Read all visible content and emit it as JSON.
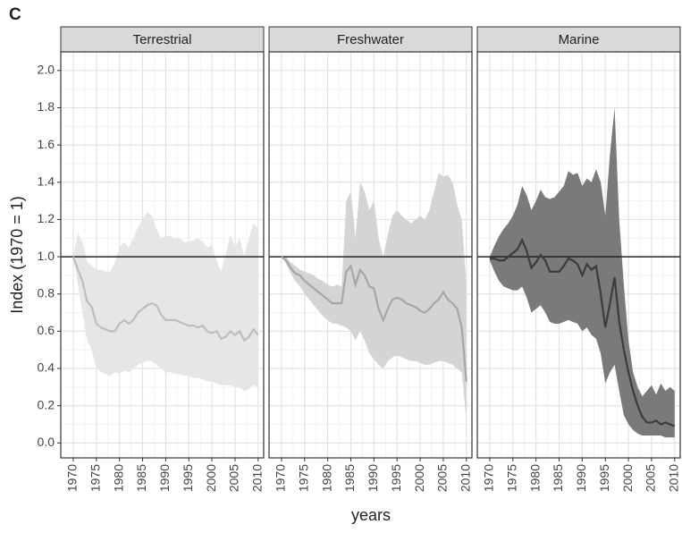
{
  "panel_label": "C",
  "y_label": "Index (1970 = 1)",
  "x_label": "years",
  "chart_data": [
    {
      "type": "line",
      "title": "Terrestrial",
      "band_color": "#e6e6e6",
      "color": "#bdbdbd",
      "x": [
        1970,
        1971,
        1972,
        1973,
        1974,
        1975,
        1976,
        1977,
        1978,
        1979,
        1980,
        1981,
        1982,
        1983,
        1984,
        1985,
        1986,
        1987,
        1988,
        1989,
        1990,
        1991,
        1992,
        1993,
        1994,
        1995,
        1996,
        1997,
        1998,
        1999,
        2000,
        2001,
        2002,
        2003,
        2004,
        2005,
        2006,
        2007,
        2008,
        2009,
        2010
      ],
      "values": [
        1.0,
        0.93,
        0.87,
        0.76,
        0.73,
        0.64,
        0.62,
        0.61,
        0.6,
        0.6,
        0.64,
        0.66,
        0.64,
        0.66,
        0.7,
        0.72,
        0.74,
        0.75,
        0.74,
        0.69,
        0.66,
        0.66,
        0.66,
        0.65,
        0.64,
        0.63,
        0.63,
        0.62,
        0.63,
        0.6,
        0.59,
        0.6,
        0.56,
        0.57,
        0.6,
        0.58,
        0.6,
        0.55,
        0.57,
        0.61,
        0.58
      ],
      "upper": [
        1.0,
        1.13,
        1.08,
        0.97,
        0.95,
        0.93,
        0.93,
        0.92,
        0.92,
        0.97,
        1.05,
        1.08,
        1.05,
        1.1,
        1.16,
        1.2,
        1.24,
        1.22,
        1.15,
        1.1,
        1.11,
        1.11,
        1.1,
        1.1,
        1.08,
        1.08,
        1.09,
        1.1,
        1.08,
        1.05,
        1.06,
        0.98,
        0.92,
        1.02,
        1.12,
        1.05,
        1.1,
        1.0,
        1.1,
        1.18,
        1.15
      ],
      "lower": [
        1.0,
        0.85,
        0.7,
        0.55,
        0.5,
        0.4,
        0.38,
        0.37,
        0.36,
        0.38,
        0.37,
        0.39,
        0.38,
        0.4,
        0.42,
        0.43,
        0.44,
        0.44,
        0.42,
        0.4,
        0.38,
        0.38,
        0.37,
        0.37,
        0.36,
        0.36,
        0.35,
        0.35,
        0.34,
        0.33,
        0.33,
        0.32,
        0.31,
        0.31,
        0.31,
        0.3,
        0.3,
        0.28,
        0.29,
        0.31,
        0.3
      ],
      "xlim": [
        1967.3,
        2011.2
      ],
      "xticks": [
        1970,
        1975,
        1980,
        1985,
        1990,
        1995,
        2000,
        2005,
        2010
      ],
      "ylim": [
        -0.08,
        2.1
      ],
      "yticks": [
        {
          "value": 0,
          "label": "0.0"
        },
        {
          "value": 0.2,
          "label": "0.2"
        },
        {
          "value": 0.4,
          "label": "0.4"
        },
        {
          "value": 0.6,
          "label": "0.6"
        },
        {
          "value": 0.8,
          "label": "0.8"
        },
        {
          "value": 1,
          "label": "1.0"
        },
        {
          "value": 1.2,
          "label": "1.2"
        },
        {
          "value": 1.4,
          "label": "1.4"
        },
        {
          "value": 1.6,
          "label": "1.6"
        },
        {
          "value": 1.8,
          "label": "1.8"
        },
        {
          "value": 2,
          "label": "2.0"
        }
      ],
      "reference_line": 1,
      "grid": true
    },
    {
      "type": "line",
      "title": "Freshwater",
      "band_color": "#d4d4d4",
      "color": "#a6a6a6",
      "x": [
        1970,
        1971,
        1972,
        1973,
        1974,
        1975,
        1976,
        1977,
        1978,
        1979,
        1980,
        1981,
        1982,
        1983,
        1984,
        1985,
        1986,
        1987,
        1988,
        1989,
        1990,
        1991,
        1992,
        1993,
        1994,
        1995,
        1996,
        1997,
        1998,
        1999,
        2000,
        2001,
        2002,
        2003,
        2004,
        2005,
        2006,
        2007,
        2008,
        2009,
        2010
      ],
      "values": [
        1.0,
        0.98,
        0.94,
        0.91,
        0.9,
        0.87,
        0.85,
        0.83,
        0.81,
        0.79,
        0.77,
        0.75,
        0.75,
        0.75,
        0.92,
        0.95,
        0.85,
        0.93,
        0.9,
        0.84,
        0.83,
        0.72,
        0.66,
        0.72,
        0.77,
        0.78,
        0.77,
        0.75,
        0.74,
        0.73,
        0.71,
        0.7,
        0.72,
        0.75,
        0.77,
        0.81,
        0.77,
        0.75,
        0.72,
        0.62,
        0.33
      ],
      "upper": [
        1.0,
        1.0,
        0.97,
        0.95,
        0.93,
        0.92,
        0.91,
        0.9,
        0.88,
        0.87,
        0.85,
        0.84,
        0.85,
        0.84,
        1.3,
        1.35,
        1.1,
        1.4,
        1.35,
        1.25,
        1.3,
        1.1,
        1.0,
        1.12,
        1.22,
        1.25,
        1.22,
        1.2,
        1.18,
        1.2,
        1.22,
        1.2,
        1.25,
        1.35,
        1.45,
        1.43,
        1.44,
        1.4,
        1.28,
        1.2,
        0.85
      ],
      "lower": [
        1.0,
        0.96,
        0.91,
        0.87,
        0.84,
        0.8,
        0.77,
        0.74,
        0.71,
        0.68,
        0.66,
        0.64,
        0.64,
        0.63,
        0.62,
        0.6,
        0.55,
        0.6,
        0.55,
        0.48,
        0.45,
        0.42,
        0.4,
        0.44,
        0.46,
        0.47,
        0.46,
        0.45,
        0.44,
        0.44,
        0.43,
        0.42,
        0.42,
        0.43,
        0.44,
        0.44,
        0.43,
        0.42,
        0.4,
        0.38,
        0.12
      ],
      "xlim": [
        1967.3,
        2011.2
      ],
      "xticks": [
        1970,
        1975,
        1980,
        1985,
        1990,
        1995,
        2000,
        2005,
        2010
      ],
      "ylim": [
        -0.08,
        2.1
      ],
      "yticks": [
        0,
        0.2,
        0.4,
        0.6,
        0.8,
        1,
        1.2,
        1.4,
        1.6,
        1.8,
        2
      ],
      "reference_line": 1,
      "grid": true
    },
    {
      "type": "line",
      "title": "Marine",
      "band_color": "#7a7a7a",
      "color": "#3c3c3c",
      "x": [
        1970,
        1971,
        1972,
        1973,
        1974,
        1975,
        1976,
        1977,
        1978,
        1979,
        1980,
        1981,
        1982,
        1983,
        1984,
        1985,
        1986,
        1987,
        1988,
        1989,
        1990,
        1991,
        1992,
        1993,
        1994,
        1995,
        1996,
        1997,
        1998,
        1999,
        2000,
        2001,
        2002,
        2003,
        2004,
        2005,
        2006,
        2007,
        2008,
        2009,
        2010
      ],
      "values": [
        0.99,
        0.99,
        0.98,
        0.98,
        1.0,
        1.02,
        1.04,
        1.09,
        1.03,
        0.94,
        0.97,
        1.01,
        0.98,
        0.92,
        0.92,
        0.92,
        0.95,
        0.99,
        0.98,
        0.96,
        0.9,
        0.96,
        0.93,
        0.95,
        0.8,
        0.62,
        0.75,
        0.89,
        0.65,
        0.5,
        0.38,
        0.28,
        0.2,
        0.14,
        0.11,
        0.11,
        0.12,
        0.1,
        0.11,
        0.1,
        0.09
      ],
      "upper": [
        1.0,
        1.06,
        1.11,
        1.15,
        1.18,
        1.22,
        1.28,
        1.38,
        1.33,
        1.25,
        1.3,
        1.36,
        1.32,
        1.31,
        1.32,
        1.35,
        1.38,
        1.46,
        1.44,
        1.45,
        1.38,
        1.42,
        1.4,
        1.47,
        1.4,
        1.22,
        1.55,
        1.8,
        1.2,
        0.85,
        0.55,
        0.38,
        0.3,
        0.25,
        0.28,
        0.31,
        0.26,
        0.32,
        0.28,
        0.3,
        0.28
      ],
      "lower": [
        0.98,
        0.92,
        0.87,
        0.84,
        0.83,
        0.82,
        0.82,
        0.84,
        0.78,
        0.7,
        0.72,
        0.74,
        0.7,
        0.65,
        0.64,
        0.64,
        0.65,
        0.66,
        0.65,
        0.64,
        0.6,
        0.62,
        0.58,
        0.56,
        0.48,
        0.32,
        0.38,
        0.42,
        0.28,
        0.15,
        0.1,
        0.07,
        0.05,
        0.04,
        0.04,
        0.04,
        0.04,
        0.04,
        0.03,
        0.03,
        0.03
      ],
      "xlim": [
        1967.3,
        2011.2
      ],
      "xticks": [
        1970,
        1975,
        1980,
        1985,
        1990,
        1995,
        2000,
        2005,
        2010
      ],
      "ylim": [
        -0.08,
        2.1
      ],
      "yticks": [
        0,
        0.2,
        0.4,
        0.6,
        0.8,
        1,
        1.2,
        1.4,
        1.6,
        1.8,
        2
      ],
      "reference_line": 1,
      "grid": true
    }
  ]
}
